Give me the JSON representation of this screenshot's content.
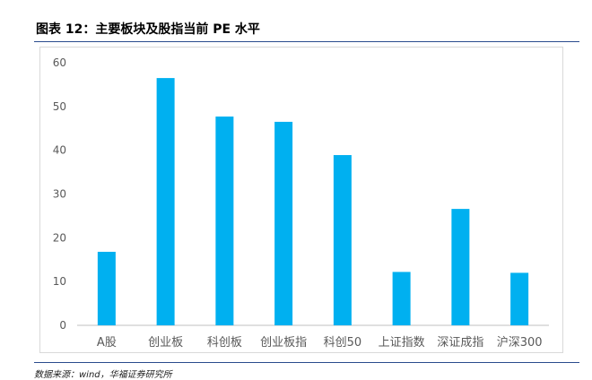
{
  "header": {
    "title": "图表 12：主要板块及股指当前 PE 水平"
  },
  "footer": {
    "source": "数据来源：wind，华福证券研究所"
  },
  "colors": {
    "bar": "#00b0f0",
    "rule": "#2a4b8d",
    "axis": "#bfbfbf"
  },
  "chart_data": {
    "type": "bar",
    "title": "",
    "xlabel": "",
    "ylabel": "",
    "ylim": [
      0,
      60
    ],
    "yticks": [
      "0",
      "10",
      "20",
      "30",
      "40",
      "50",
      "60"
    ],
    "grid": false,
    "categories": [
      "A股",
      "创业板",
      "科创板",
      "创业板指",
      "科创50",
      "上证指数",
      "深证成指",
      "沪深300"
    ],
    "values": [
      16.8,
      56.5,
      47.7,
      46.5,
      38.9,
      12.2,
      26.6,
      12.0
    ]
  }
}
